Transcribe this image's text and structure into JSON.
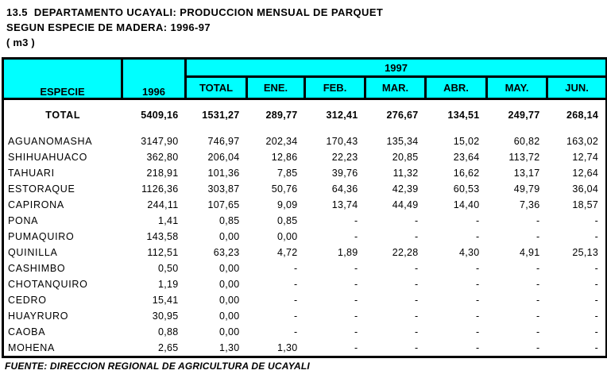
{
  "title": {
    "line1": "13.5  DEPARTAMENTO UCAYALI: PRODUCCION MENSUAL DE PARQUET",
    "line2": "SEGUN ESPECIE DE MADERA: 1996-97",
    "line3": "( m3 )"
  },
  "table": {
    "col_especie": "ESPECIE",
    "col_1996": "1996",
    "col_1997": "1997",
    "months": [
      "TOTAL",
      "ENE.",
      "FEB.",
      "MAR.",
      "ABR.",
      "MAY.",
      "JUN."
    ],
    "total_row": {
      "label": "TOTAL",
      "values": [
        "5409,16",
        "1531,27",
        "289,77",
        "312,41",
        "276,67",
        "134,51",
        "249,77",
        "268,14"
      ]
    },
    "rows": [
      {
        "especie": "AGUANOMASHA",
        "values": [
          "3147,90",
          "746,97",
          "202,34",
          "170,43",
          "135,34",
          "15,02",
          "60,82",
          "163,02"
        ]
      },
      {
        "especie": "SHIHUAHUACO",
        "values": [
          "362,80",
          "206,04",
          "12,86",
          "22,23",
          "20,85",
          "23,64",
          "113,72",
          "12,74"
        ]
      },
      {
        "especie": "TAHUARI",
        "values": [
          "218,91",
          "101,36",
          "7,85",
          "39,76",
          "11,32",
          "16,62",
          "13,17",
          "12,64"
        ]
      },
      {
        "especie": "ESTORAQUE",
        "values": [
          "1126,36",
          "303,87",
          "50,76",
          "64,36",
          "42,39",
          "60,53",
          "49,79",
          "36,04"
        ]
      },
      {
        "especie": "CAPIRONA",
        "values": [
          "244,11",
          "107,65",
          "9,09",
          "13,74",
          "44,49",
          "14,40",
          "7,36",
          "18,57"
        ]
      },
      {
        "especie": "PONA",
        "values": [
          "1,41",
          "0,85",
          "0,85",
          "-",
          "-",
          "-",
          "-",
          "-"
        ]
      },
      {
        "especie": "PUMAQUIRO",
        "values": [
          "143,58",
          "0,00",
          "0,00",
          "-",
          "-",
          "-",
          "-",
          "-"
        ]
      },
      {
        "especie": "QUINILLA",
        "values": [
          "112,51",
          "63,23",
          "4,72",
          "1,89",
          "22,28",
          "4,30",
          "4,91",
          "25,13"
        ]
      },
      {
        "especie": "CASHIMBO",
        "values": [
          "0,50",
          "0,00",
          "-",
          "-",
          "-",
          "-",
          "-",
          "-"
        ]
      },
      {
        "especie": "CHOTANQUIRO",
        "values": [
          "1,19",
          "0,00",
          "-",
          "-",
          "-",
          "-",
          "-",
          "-"
        ]
      },
      {
        "especie": "CEDRO",
        "values": [
          "15,41",
          "0,00",
          "-",
          "-",
          "-",
          "-",
          "-",
          "-"
        ]
      },
      {
        "especie": "HUAYRURO",
        "values": [
          "30,95",
          "0,00",
          "-",
          "-",
          "-",
          "-",
          "-",
          "-"
        ]
      },
      {
        "especie": "CAOBA",
        "values": [
          "0,88",
          "0,00",
          "-",
          "-",
          "-",
          "-",
          "-",
          "-"
        ]
      },
      {
        "especie": "MOHENA",
        "values": [
          "2,65",
          "1,30",
          "1,30",
          "-",
          "-",
          "-",
          "-",
          "-"
        ]
      }
    ]
  },
  "footer": "FUENTE: DIRECCION REGIONAL DE AGRICULTURA DE UCAYALI",
  "colors": {
    "header_bg": "#00ffff",
    "border": "#000000",
    "text": "#000000",
    "background": "#ffffff"
  }
}
